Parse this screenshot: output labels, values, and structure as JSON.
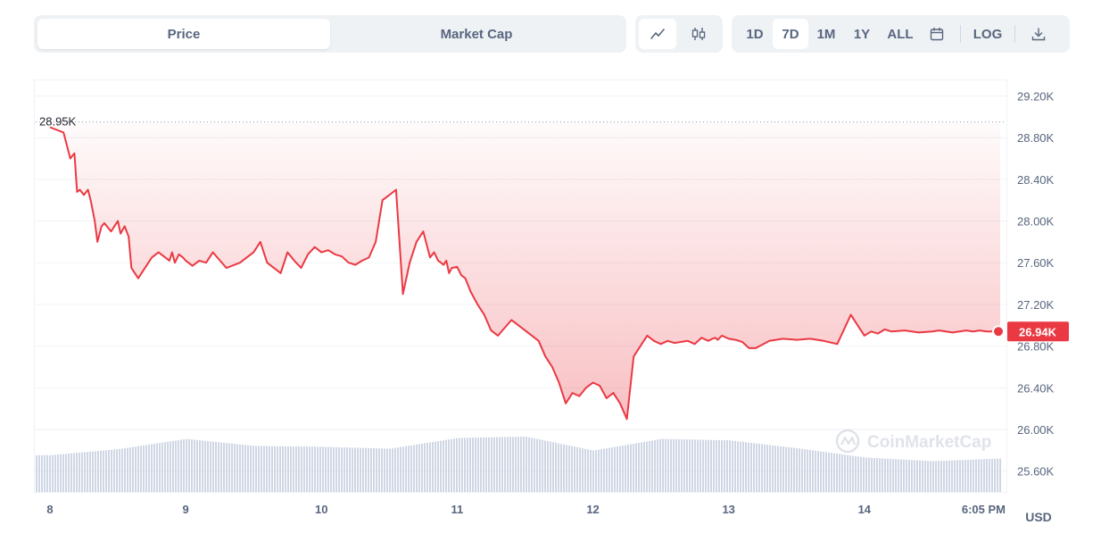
{
  "tabs": [
    {
      "label": "Price",
      "active": true
    },
    {
      "label": "Market Cap",
      "active": false
    }
  ],
  "chart_type_toggle": [
    {
      "icon": "line-chart-icon",
      "active": true
    },
    {
      "icon": "candlestick-icon",
      "active": false
    }
  ],
  "ranges": [
    {
      "label": "1D",
      "active": false
    },
    {
      "label": "7D",
      "active": true
    },
    {
      "label": "1M",
      "active": false
    },
    {
      "label": "1Y",
      "active": false
    },
    {
      "label": "ALL",
      "active": false
    }
  ],
  "calendar_icon": "calendar-icon",
  "log_label": "LOG",
  "download_icon": "download-icon",
  "watermark": "CoinMarketCap",
  "colors": {
    "line": "#ea3943",
    "accent": "#3861fb",
    "volume": "#cfd6e4",
    "grid": "#eff2f5",
    "text": "#58667e"
  },
  "chart_data": {
    "type": "line",
    "title": "",
    "currency": "USD",
    "x_tick_labels": [
      "8",
      "9",
      "10",
      "11",
      "12",
      "13",
      "14",
      "6:05 PM"
    ],
    "y_tick_labels": [
      "29.20K",
      "28.80K",
      "28.40K",
      "28.00K",
      "27.60K",
      "27.20K",
      "26.80K",
      "26.40K",
      "26.00K",
      "25.60K"
    ],
    "ylim": [
      25400,
      29350
    ],
    "high_label": "28.95K",
    "high_value": 28950,
    "current_label": "26.94K",
    "current_value": 26940,
    "grid": true,
    "x_range": [
      0,
      7.02
    ],
    "series": [
      {
        "x": [
          0,
          0.1,
          0.15,
          0.18,
          0.2,
          0.22,
          0.25,
          0.28,
          0.3,
          0.33,
          0.35,
          0.38,
          0.4,
          0.45,
          0.5,
          0.52,
          0.55,
          0.58,
          0.6,
          0.65,
          0.7,
          0.75,
          0.8,
          0.85,
          0.88,
          0.9,
          0.92,
          0.95,
          0.98,
          1.0,
          1.02,
          1.05,
          1.1,
          1.15,
          1.2,
          1.3,
          1.4,
          1.5,
          1.55,
          1.6,
          1.65,
          1.7,
          1.75,
          1.8,
          1.85,
          1.9,
          1.95,
          2.0,
          2.05,
          2.1,
          2.15,
          2.2,
          2.25,
          2.3,
          2.35,
          2.4,
          2.45,
          2.5,
          2.55,
          2.6,
          2.65,
          2.7,
          2.75,
          2.8,
          2.83,
          2.86,
          2.88,
          2.9,
          2.92,
          2.94,
          2.96,
          3.0,
          3.03,
          3.06,
          3.1,
          3.15,
          3.2,
          3.25,
          3.3,
          3.4,
          3.5,
          3.6,
          3.65,
          3.7,
          3.75,
          3.8,
          3.85,
          3.9,
          3.95,
          4.0,
          4.05,
          4.1,
          4.15,
          4.2,
          4.25,
          4.3,
          4.35,
          4.4,
          4.45,
          4.5,
          4.55,
          4.6,
          4.65,
          4.7,
          4.75,
          4.8,
          4.85,
          4.88,
          4.9,
          4.92,
          4.95,
          5.0,
          5.05,
          5.1,
          5.15,
          5.2,
          5.3,
          5.4,
          5.5,
          5.6,
          5.7,
          5.8,
          5.9,
          6.0,
          6.05,
          6.1,
          6.15,
          6.2,
          6.3,
          6.4,
          6.5,
          6.55,
          6.6,
          6.65,
          6.7,
          6.75,
          6.8,
          6.85,
          6.9,
          6.95,
          7.0
        ],
        "y": [
          28900,
          28850,
          28600,
          28650,
          28280,
          28300,
          28250,
          28300,
          28200,
          28000,
          27800,
          27950,
          27980,
          27900,
          28000,
          27880,
          27950,
          27850,
          27550,
          27450,
          27550,
          27650,
          27700,
          27650,
          27620,
          27700,
          27600,
          27680,
          27650,
          27620,
          27600,
          27570,
          27620,
          27600,
          27700,
          27550,
          27600,
          27700,
          27800,
          27600,
          27550,
          27500,
          27700,
          27620,
          27550,
          27680,
          27750,
          27700,
          27720,
          27680,
          27660,
          27600,
          27580,
          27620,
          27650,
          27800,
          28200,
          28250,
          28300,
          27300,
          27600,
          27800,
          27900,
          27650,
          27700,
          27620,
          27600,
          27580,
          27620,
          27500,
          27550,
          27560,
          27480,
          27450,
          27320,
          27200,
          27100,
          26950,
          26900,
          27050,
          26950,
          26850,
          26700,
          26600,
          26450,
          26250,
          26350,
          26320,
          26400,
          26450,
          26420,
          26300,
          26350,
          26250,
          26100,
          26700,
          26800,
          26900,
          26850,
          26820,
          26850,
          26830,
          26840,
          26850,
          26820,
          26880,
          26850,
          26870,
          26880,
          26860,
          26900,
          26870,
          26860,
          26840,
          26780,
          26780,
          26850,
          26870,
          26860,
          26870,
          26850,
          26820,
          27100,
          26900,
          26940,
          26920,
          26960,
          26940,
          26950,
          26930,
          26940,
          26950,
          26940,
          26930,
          26940,
          26950,
          26940,
          26950,
          26940,
          26940,
          26940
        ]
      }
    ],
    "volume": {
      "x": [
        0,
        0.5,
        1.0,
        1.5,
        2.0,
        2.5,
        3.0,
        3.5,
        4.0,
        4.5,
        5.0,
        5.5,
        6.0,
        6.5,
        7.0
      ],
      "relative": [
        0.6,
        0.73,
        0.95,
        0.8,
        0.78,
        0.74,
        0.97,
        1.0,
        0.7,
        0.95,
        0.92,
        0.75,
        0.55,
        0.47,
        0.53
      ]
    }
  }
}
